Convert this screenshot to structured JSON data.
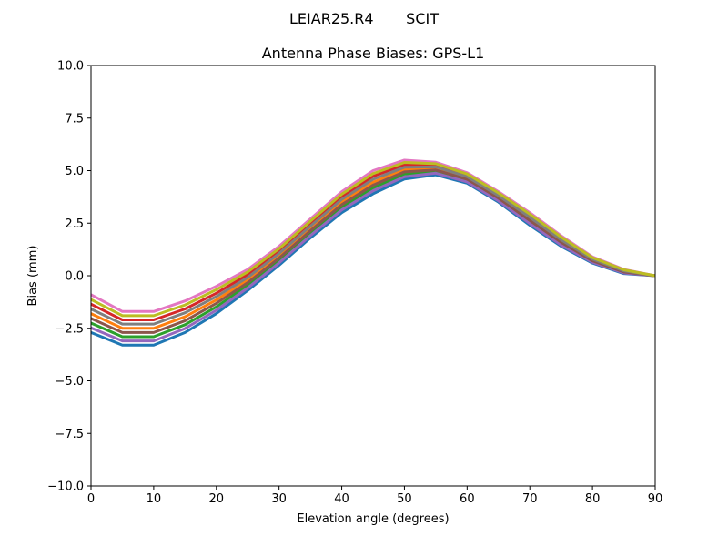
{
  "suptitle": "LEIAR25.R4       SCIT",
  "chart_data": {
    "type": "line",
    "title": "Antenna Phase Biases: GPS-L1",
    "xlabel": "Elevation angle (degrees)",
    "ylabel": "Bias (mm)",
    "xlim": [
      0,
      90
    ],
    "ylim": [
      -10,
      10
    ],
    "xticks": [
      "0",
      "10",
      "20",
      "30",
      "40",
      "50",
      "60",
      "70",
      "80",
      "90"
    ],
    "yticks": [
      "−10.0",
      "−7.5",
      "−5.0",
      "−2.5",
      "0.0",
      "2.5",
      "5.0",
      "7.5",
      "10.0"
    ],
    "grid": false,
    "legend": "none",
    "colors": [
      "#1f77b4",
      "#ff7f0e",
      "#2ca02c",
      "#d62728",
      "#9467bd",
      "#8c564b",
      "#e377c2",
      "#7f7f7f",
      "#bcbd22",
      "#17becf"
    ],
    "x": [
      0,
      5,
      10,
      15,
      20,
      25,
      30,
      35,
      40,
      45,
      50,
      55,
      60,
      65,
      70,
      75,
      80,
      85,
      90
    ],
    "series": [
      {
        "values": [
          -2.7,
          -3.3,
          -3.3,
          -2.7,
          -1.8,
          -0.7,
          0.5,
          1.8,
          3.0,
          3.9,
          4.6,
          4.8,
          4.4,
          3.5,
          2.4,
          1.4,
          0.6,
          0.1,
          0
        ]
      },
      {
        "values": [
          -1.8,
          -2.5,
          -2.5,
          -1.95,
          -1.15,
          -0.2,
          0.95,
          2.25,
          3.5,
          4.45,
          5.05,
          5.1,
          4.65,
          3.75,
          2.7,
          1.65,
          0.75,
          0.2,
          0
        ]
      },
      {
        "values": [
          -2.25,
          -2.9,
          -2.9,
          -2.33,
          -1.48,
          -0.45,
          0.73,
          2.03,
          3.25,
          4.18,
          4.83,
          4.95,
          4.53,
          3.63,
          2.55,
          1.53,
          0.68,
          0.15,
          0
        ]
      },
      {
        "values": [
          -1.35,
          -2.1,
          -2.1,
          -1.58,
          -0.83,
          0.05,
          1.18,
          2.48,
          3.75,
          4.73,
          5.28,
          5.25,
          4.78,
          3.88,
          2.85,
          1.78,
          0.83,
          0.25,
          0
        ]
      },
      {
        "values": [
          -2.48,
          -3.1,
          -3.1,
          -2.51,
          -1.64,
          -0.58,
          0.61,
          1.91,
          3.13,
          4.04,
          4.71,
          4.88,
          4.46,
          3.56,
          2.48,
          1.46,
          0.64,
          0.13,
          0
        ]
      },
      {
        "values": [
          -2.03,
          -2.7,
          -2.7,
          -2.14,
          -1.31,
          -0.33,
          0.84,
          2.14,
          3.38,
          4.31,
          4.94,
          5.03,
          4.59,
          3.69,
          2.63,
          1.59,
          0.71,
          0.18,
          0
        ]
      },
      {
        "values": [
          -0.9,
          -1.7,
          -1.7,
          -1.2,
          -0.5,
          0.3,
          1.4,
          2.7,
          4.0,
          5.0,
          5.5,
          5.4,
          4.9,
          4.0,
          3.0,
          1.9,
          0.9,
          0.3,
          0
        ]
      },
      {
        "values": [
          -1.58,
          -2.3,
          -2.3,
          -1.76,
          -0.99,
          -0.08,
          1.06,
          2.36,
          3.63,
          4.59,
          5.16,
          5.18,
          4.71,
          3.81,
          2.78,
          1.71,
          0.79,
          0.23,
          0
        ]
      },
      {
        "values": [
          -1.13,
          -1.9,
          -1.9,
          -1.39,
          -0.66,
          0.18,
          1.29,
          2.59,
          3.88,
          4.86,
          5.39,
          5.33,
          4.84,
          3.94,
          2.93,
          1.84,
          0.86,
          0.28,
          0
        ]
      }
    ]
  }
}
